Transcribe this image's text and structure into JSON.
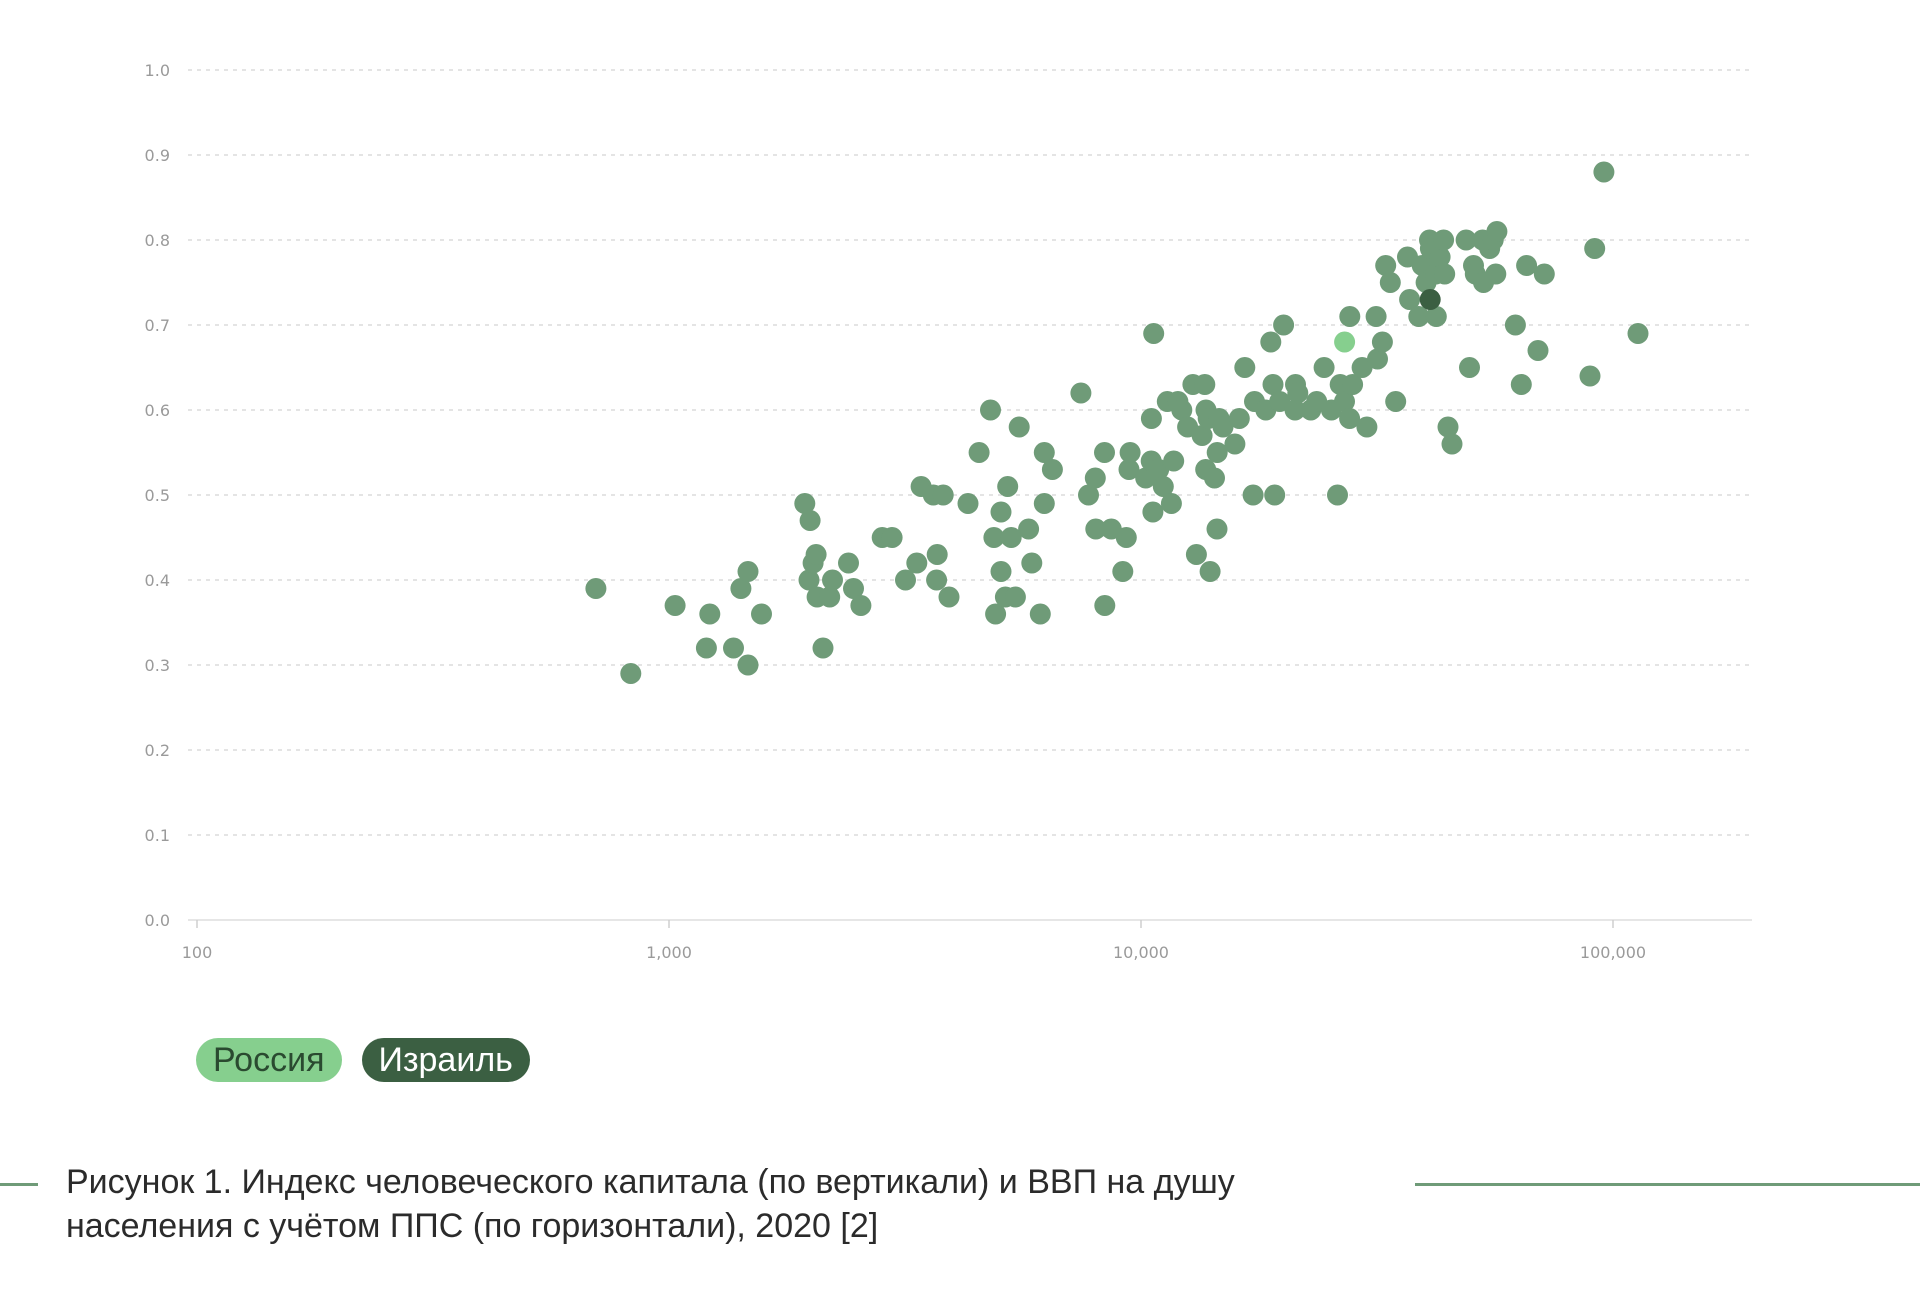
{
  "chart_data": {
    "type": "scatter",
    "x_scale": "log",
    "xlim": [
      100,
      200000
    ],
    "ylim": [
      0,
      1.0
    ],
    "x_ticks": [
      {
        "value": 100,
        "label": "100"
      },
      {
        "value": 1000,
        "label": "1,000"
      },
      {
        "value": 10000,
        "label": "10,000"
      },
      {
        "value": 100000,
        "label": "100,000"
      }
    ],
    "y_ticks": [
      {
        "value": 0.0,
        "label": "0.0"
      },
      {
        "value": 0.1,
        "label": "0.1"
      },
      {
        "value": 0.2,
        "label": "0.2"
      },
      {
        "value": 0.3,
        "label": "0.3"
      },
      {
        "value": 0.4,
        "label": "0.4"
      },
      {
        "value": 0.5,
        "label": "0.5"
      },
      {
        "value": 0.6,
        "label": "0.6"
      },
      {
        "value": 0.7,
        "label": "0.7"
      },
      {
        "value": 0.8,
        "label": "0.8"
      },
      {
        "value": 0.9,
        "label": "0.9"
      },
      {
        "value": 1.0,
        "label": "1.0"
      }
    ],
    "grid": "horizontal dashed",
    "colors": {
      "points": "#6f9b78",
      "russia": "#86cf8e",
      "israel": "#3b5f42"
    },
    "points": [
      [
        700,
        0.39
      ],
      [
        830,
        0.29
      ],
      [
        1030,
        0.37
      ],
      [
        1200,
        0.32
      ],
      [
        1220,
        0.36
      ],
      [
        1370,
        0.32
      ],
      [
        1420,
        0.39
      ],
      [
        1470,
        0.41
      ],
      [
        1470,
        0.3
      ],
      [
        1570,
        0.36
      ],
      [
        1940,
        0.49
      ],
      [
        1980,
        0.4
      ],
      [
        1990,
        0.47
      ],
      [
        2020,
        0.42
      ],
      [
        2050,
        0.43
      ],
      [
        2060,
        0.38
      ],
      [
        2120,
        0.32
      ],
      [
        2190,
        0.38
      ],
      [
        2220,
        0.4
      ],
      [
        2400,
        0.42
      ],
      [
        2460,
        0.39
      ],
      [
        2550,
        0.37
      ],
      [
        2830,
        0.45
      ],
      [
        2970,
        0.45
      ],
      [
        3170,
        0.4
      ],
      [
        3350,
        0.42
      ],
      [
        3420,
        0.51
      ],
      [
        3630,
        0.5
      ],
      [
        3690,
        0.4
      ],
      [
        3700,
        0.43
      ],
      [
        3810,
        0.5
      ],
      [
        3920,
        0.38
      ],
      [
        4300,
        0.49
      ],
      [
        4540,
        0.55
      ],
      [
        4800,
        0.6
      ],
      [
        4880,
        0.45
      ],
      [
        4920,
        0.36
      ],
      [
        5050,
        0.41
      ],
      [
        5050,
        0.48
      ],
      [
        5160,
        0.38
      ],
      [
        5220,
        0.51
      ],
      [
        5310,
        0.45
      ],
      [
        5420,
        0.38
      ],
      [
        5520,
        0.58
      ],
      [
        5780,
        0.46
      ],
      [
        5870,
        0.42
      ],
      [
        6120,
        0.36
      ],
      [
        6240,
        0.49
      ],
      [
        6240,
        0.55
      ],
      [
        6490,
        0.53
      ],
      [
        7460,
        0.62
      ],
      [
        7740,
        0.5
      ],
      [
        8000,
        0.52
      ],
      [
        8020,
        0.46
      ],
      [
        8370,
        0.55
      ],
      [
        8380,
        0.37
      ],
      [
        8650,
        0.46
      ],
      [
        9150,
        0.41
      ],
      [
        9310,
        0.45
      ],
      [
        9430,
        0.53
      ],
      [
        9480,
        0.55
      ],
      [
        10230,
        0.52
      ],
      [
        10510,
        0.54
      ],
      [
        10520,
        0.59
      ],
      [
        10600,
        0.48
      ],
      [
        10640,
        0.69
      ],
      [
        10900,
        0.53
      ],
      [
        11150,
        0.51
      ],
      [
        11370,
        0.61
      ],
      [
        11600,
        0.49
      ],
      [
        11730,
        0.54
      ],
      [
        11970,
        0.61
      ],
      [
        12200,
        0.6
      ],
      [
        12550,
        0.58
      ],
      [
        12880,
        0.63
      ],
      [
        13100,
        0.43
      ],
      [
        13470,
        0.57
      ],
      [
        13650,
        0.63
      ],
      [
        13710,
        0.53
      ],
      [
        13730,
        0.6
      ],
      [
        13880,
        0.59
      ],
      [
        14010,
        0.41
      ],
      [
        14310,
        0.52
      ],
      [
        14490,
        0.46
      ],
      [
        14500,
        0.55
      ],
      [
        14640,
        0.59
      ],
      [
        14920,
        0.58
      ],
      [
        15810,
        0.56
      ],
      [
        16150,
        0.59
      ],
      [
        16590,
        0.65
      ],
      [
        17280,
        0.5
      ],
      [
        17400,
        0.61
      ],
      [
        18380,
        0.6
      ],
      [
        18840,
        0.68
      ],
      [
        19040,
        0.63
      ],
      [
        19200,
        0.5
      ],
      [
        19670,
        0.61
      ],
      [
        20050,
        0.7
      ],
      [
        21200,
        0.6
      ],
      [
        21250,
        0.63
      ],
      [
        21490,
        0.62
      ],
      [
        22900,
        0.6
      ],
      [
        23560,
        0.61
      ],
      [
        24430,
        0.65
      ],
      [
        25320,
        0.6
      ],
      [
        26080,
        0.5
      ],
      [
        26420,
        0.63
      ],
      [
        26990,
        0.61
      ],
      [
        27660,
        0.59
      ],
      [
        27690,
        0.71
      ],
      [
        28070,
        0.63
      ],
      [
        29400,
        0.65
      ],
      [
        30100,
        0.58
      ],
      [
        31480,
        0.71
      ],
      [
        31700,
        0.66
      ],
      [
        32470,
        0.68
      ],
      [
        33000,
        0.77
      ],
      [
        33750,
        0.75
      ],
      [
        34650,
        0.61
      ],
      [
        36690,
        0.78
      ],
      [
        37080,
        0.73
      ],
      [
        38780,
        0.71
      ],
      [
        39430,
        0.77
      ],
      [
        40190,
        0.75
      ],
      [
        40850,
        0.8
      ],
      [
        41030,
        0.79
      ],
      [
        42100,
        0.76
      ],
      [
        42240,
        0.71
      ],
      [
        43030,
        0.78
      ],
      [
        43770,
        0.8
      ],
      [
        44000,
        0.76
      ],
      [
        44720,
        0.58
      ],
      [
        45600,
        0.56
      ],
      [
        48830,
        0.8
      ],
      [
        49660,
        0.65
      ],
      [
        50640,
        0.77
      ],
      [
        51070,
        0.76
      ],
      [
        52930,
        0.8
      ],
      [
        53160,
        0.75
      ],
      [
        54800,
        0.79
      ],
      [
        55740,
        0.8
      ],
      [
        56450,
        0.76
      ],
      [
        56760,
        0.81
      ],
      [
        62120,
        0.7
      ],
      [
        63930,
        0.63
      ],
      [
        65600,
        0.77
      ],
      [
        69370,
        0.67
      ],
      [
        71530,
        0.76
      ],
      [
        89390,
        0.64
      ],
      [
        91470,
        0.79
      ],
      [
        95660,
        0.88
      ],
      [
        112970,
        0.69
      ]
    ],
    "highlighted": [
      {
        "name": "Россия",
        "x": 27000,
        "y": 0.68,
        "color": "#86cf8e"
      },
      {
        "name": "Израиль",
        "x": 41000,
        "y": 0.73,
        "color": "#3b5f42"
      }
    ]
  },
  "legend": {
    "russia": "Россия",
    "israel": "Израиль"
  },
  "caption": {
    "line1": "Рисунок 1. Индекс человеческого капитала (по вертикали) и ВВП на душу",
    "line2": "населения с учётом ППС (по горизонтали), 2020 [2]"
  }
}
